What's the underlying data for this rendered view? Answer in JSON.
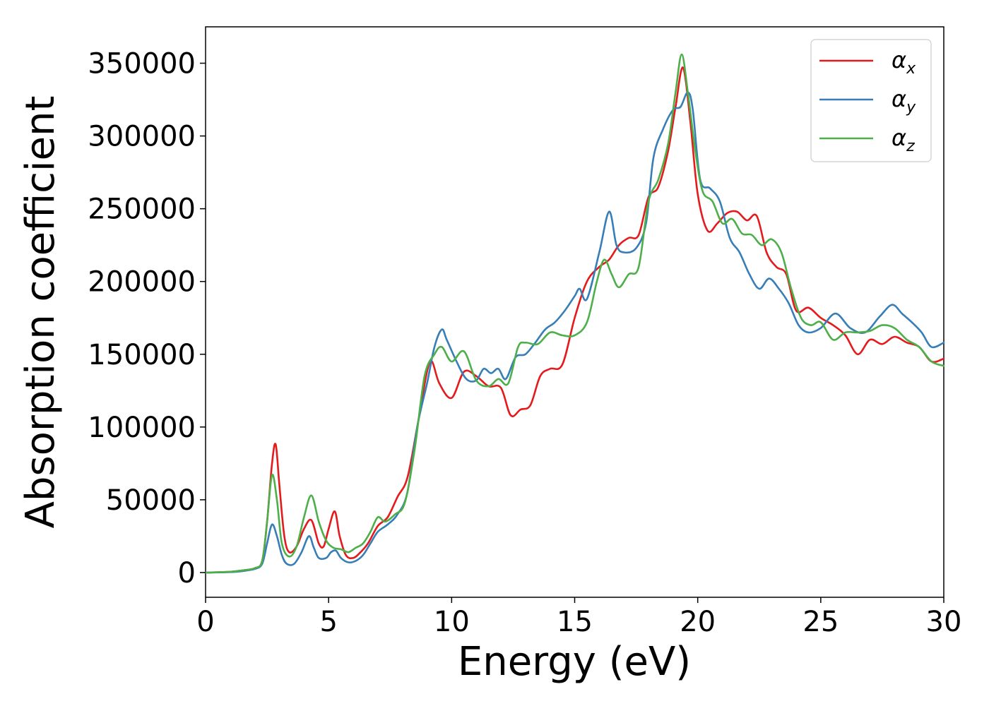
{
  "chart_data": {
    "type": "line",
    "xlabel": "Energy (eV)",
    "ylabel": "Absorption coefficient",
    "xlim": [
      0,
      30
    ],
    "ylim": [
      -17000,
      375000
    ],
    "xticks": [
      0,
      5,
      10,
      15,
      20,
      25,
      30
    ],
    "yticks": [
      0,
      50000,
      100000,
      150000,
      200000,
      250000,
      300000,
      350000
    ],
    "grid": false,
    "legend_position": "top-right",
    "series": [
      {
        "name": "αx",
        "label_main": "α",
        "label_sub": "x",
        "color": "#e41a1c",
        "x": [
          0,
          1,
          1.5,
          2,
          2.3,
          2.5,
          2.7,
          2.85,
          3.0,
          3.2,
          3.4,
          3.7,
          4.0,
          4.3,
          4.6,
          4.8,
          5.0,
          5.25,
          5.45,
          5.7,
          6.0,
          6.3,
          6.6,
          7.0,
          7.4,
          7.8,
          8.2,
          8.6,
          9.0,
          9.2,
          9.5,
          10.0,
          10.5,
          11.0,
          11.5,
          12.0,
          12.4,
          12.8,
          13.2,
          13.6,
          14.0,
          14.5,
          15.0,
          15.5,
          16.0,
          16.4,
          16.8,
          17.2,
          17.6,
          18.0,
          18.4,
          18.8,
          19.1,
          19.4,
          19.7,
          20.0,
          20.4,
          20.8,
          21.2,
          21.6,
          22.0,
          22.4,
          22.8,
          23.2,
          23.6,
          24.0,
          24.5,
          25.0,
          25.5,
          26.0,
          26.5,
          27.0,
          27.5,
          28.0,
          28.5,
          29.0,
          29.5,
          30.0
        ],
        "y": [
          0,
          500,
          1500,
          3000,
          8000,
          35000,
          75000,
          88000,
          60000,
          25000,
          14000,
          18000,
          30000,
          36000,
          20000,
          18000,
          30000,
          42000,
          25000,
          12000,
          10000,
          14000,
          20000,
          32000,
          38000,
          52000,
          65000,
          100000,
          138000,
          145000,
          130000,
          120000,
          138000,
          135000,
          128000,
          127000,
          108000,
          112000,
          115000,
          135000,
          140000,
          143000,
          175000,
          200000,
          210000,
          215000,
          225000,
          230000,
          232000,
          258000,
          265000,
          290000,
          320000,
          347000,
          310000,
          260000,
          235000,
          240000,
          247000,
          248000,
          242000,
          245000,
          220000,
          210000,
          205000,
          180000,
          182000,
          175000,
          170000,
          163000,
          150000,
          160000,
          157000,
          162000,
          158000,
          155000,
          145000,
          147000
        ]
      },
      {
        "name": "αy",
        "label_main": "α",
        "label_sub": "y",
        "color": "#377eb8",
        "x": [
          0,
          1,
          1.5,
          2,
          2.3,
          2.5,
          2.7,
          2.9,
          3.1,
          3.3,
          3.6,
          3.9,
          4.2,
          4.4,
          4.6,
          4.9,
          5.1,
          5.3,
          5.5,
          5.8,
          6.1,
          6.4,
          6.7,
          7.0,
          7.4,
          7.8,
          8.2,
          8.6,
          9.0,
          9.3,
          9.6,
          9.8,
          10.2,
          10.6,
          11.0,
          11.3,
          11.6,
          11.9,
          12.2,
          12.6,
          13.0,
          13.4,
          13.8,
          14.2,
          14.6,
          15.0,
          15.2,
          15.5,
          16.0,
          16.4,
          16.7,
          17.0,
          17.5,
          17.9,
          18.2,
          18.6,
          19.0,
          19.3,
          19.6,
          19.8,
          20.1,
          20.5,
          20.9,
          21.3,
          21.7,
          22.1,
          22.5,
          22.9,
          23.3,
          23.7,
          24.1,
          24.5,
          25.0,
          25.6,
          26.2,
          26.8,
          27.4,
          27.9,
          28.3,
          28.7,
          29.1,
          29.5,
          30.0
        ],
        "y": [
          0,
          300,
          1000,
          2500,
          6000,
          20000,
          33000,
          25000,
          12000,
          6000,
          6000,
          14000,
          25000,
          17000,
          10000,
          10000,
          14000,
          15000,
          10000,
          7000,
          8000,
          12000,
          20000,
          28000,
          33000,
          40000,
          55000,
          100000,
          130000,
          155000,
          167000,
          160000,
          145000,
          133000,
          132000,
          140000,
          137000,
          140000,
          133000,
          148000,
          150000,
          158000,
          167000,
          172000,
          180000,
          190000,
          195000,
          188000,
          220000,
          248000,
          225000,
          220000,
          223000,
          240000,
          285000,
          305000,
          318000,
          320000,
          330000,
          318000,
          270000,
          264000,
          255000,
          230000,
          220000,
          205000,
          195000,
          202000,
          195000,
          185000,
          170000,
          165000,
          168000,
          178000,
          168000,
          165000,
          176000,
          184000,
          178000,
          172000,
          165000,
          155000,
          158000
        ]
      },
      {
        "name": "αz",
        "label_main": "α",
        "label_sub": "z",
        "color": "#4daf4a",
        "x": [
          0,
          1,
          1.5,
          2,
          2.3,
          2.5,
          2.7,
          2.9,
          3.1,
          3.4,
          3.7,
          4.0,
          4.3,
          4.6,
          4.9,
          5.2,
          5.5,
          5.8,
          6.1,
          6.4,
          6.7,
          7.0,
          7.3,
          7.7,
          8.1,
          8.5,
          8.9,
          9.3,
          9.6,
          10.0,
          10.5,
          11.0,
          11.5,
          11.9,
          12.3,
          12.7,
          13.0,
          13.5,
          14.0,
          14.5,
          15.0,
          15.5,
          15.9,
          16.2,
          16.5,
          16.8,
          17.2,
          17.6,
          18.0,
          18.4,
          18.8,
          19.1,
          19.35,
          19.6,
          19.9,
          20.2,
          20.6,
          21.0,
          21.4,
          21.8,
          22.2,
          22.6,
          23.0,
          23.4,
          23.8,
          24.2,
          24.6,
          25.0,
          25.5,
          26.0,
          26.5,
          27.0,
          27.5,
          28.0,
          28.5,
          29.0,
          29.5,
          30.0
        ],
        "y": [
          0,
          500,
          1500,
          3000,
          8000,
          35000,
          67000,
          50000,
          20000,
          11000,
          18000,
          38000,
          53000,
          35000,
          22000,
          17000,
          16000,
          14000,
          17000,
          20000,
          28000,
          38000,
          35000,
          40000,
          48000,
          85000,
          135000,
          150000,
          155000,
          145000,
          152000,
          132000,
          128000,
          133000,
          130000,
          155000,
          158000,
          157000,
          165000,
          163000,
          163000,
          172000,
          200000,
          215000,
          205000,
          196000,
          205000,
          210000,
          255000,
          270000,
          295000,
          330000,
          356000,
          330000,
          290000,
          262000,
          255000,
          240000,
          243000,
          233000,
          232000,
          225000,
          229000,
          220000,
          195000,
          175000,
          170000,
          172000,
          160000,
          165000,
          165000,
          166000,
          170000,
          168000,
          160000,
          155000,
          145000,
          142000
        ]
      }
    ]
  }
}
